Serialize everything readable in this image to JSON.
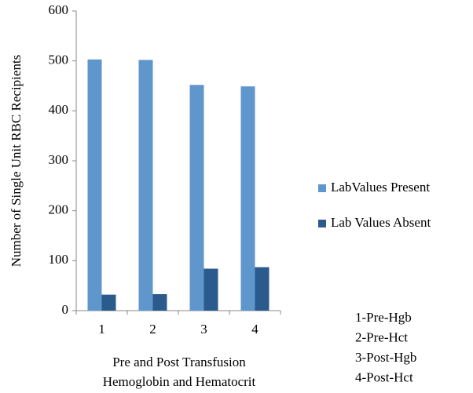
{
  "chart_data": {
    "type": "bar",
    "y_label": "Number of Single Unit RBC Recipients",
    "x_label": [
      "Pre and Post Transfusion",
      "Hemoglobin and Hematocrit"
    ],
    "categories": [
      "1",
      "2",
      "3",
      "4"
    ],
    "series": [
      {
        "name": "LabValues Present",
        "color": "#5f96cb",
        "values": [
          503,
          502,
          452,
          449
        ]
      },
      {
        "name": "Lab Values Absent",
        "color": "#2b5a8c",
        "values": [
          32,
          33,
          84,
          87
        ]
      }
    ],
    "ylim": [
      0,
      600
    ],
    "yticks": [
      0,
      100,
      200,
      300,
      400,
      500,
      600
    ],
    "grid": false,
    "legend": "right",
    "annotations": [
      "1-Pre-Hgb",
      "2-Pre-Hct",
      "3-Post-Hgb",
      "4-Post-Hct"
    ]
  }
}
